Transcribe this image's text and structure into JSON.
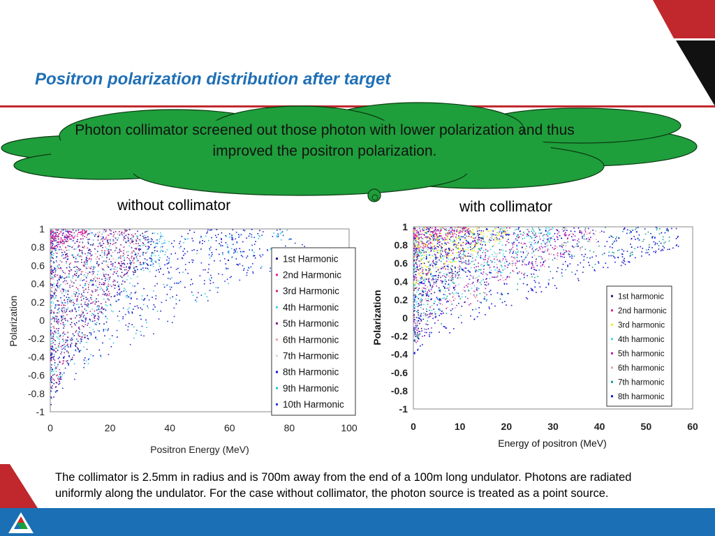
{
  "slide": {
    "title": "Positron polarization distribution after target",
    "callout_text": "Photon collimator screened out those photon with lower polarization and thus improved the positron polarization.",
    "caption_left": "without collimator",
    "caption_right": "with collimator",
    "footnote": "The collimator is 2.5mm in radius and is 700m away from the end of a 100m long undulator. Photons are radiated uniformly along the undulator. For the case without collimator, the photon source is treated as a point source."
  },
  "colors": {
    "title": "#1f6fb5",
    "accent_red": "#c0282e",
    "band_blue": "#1a6fb5",
    "callout_fill": "#1f9e3c"
  },
  "chart_data": [
    {
      "type": "scatter",
      "title": "",
      "xlabel": "Positron Energy (MeV)",
      "ylabel": "Polarization",
      "xlim": [
        0,
        100
      ],
      "ylim": [
        -1,
        1
      ],
      "xticks": [
        "0",
        "20",
        "40",
        "60",
        "80",
        "100"
      ],
      "yticks": [
        "1",
        "0.8",
        "0.6",
        "0.4",
        "0.2",
        "0",
        "-0.2",
        "-0.4",
        "-0.6",
        "-0.8",
        "-1"
      ],
      "grid": false,
      "legend_position": "right",
      "series": [
        {
          "name": "1st Harmonic",
          "color": "#1a1a8c",
          "pmin": -0.95,
          "emax": 35
        },
        {
          "name": "2nd Harmonic",
          "color": "#e0209a",
          "pmin": 0.75,
          "emax": 12
        },
        {
          "name": "3rd Harmonic",
          "color": "#cc2a7a",
          "pmin": -0.9,
          "emax": 30
        },
        {
          "name": "4th Harmonic",
          "color": "#40d0e0",
          "pmin": -0.9,
          "emax": 40
        },
        {
          "name": "5th Harmonic",
          "color": "#8a168a",
          "pmin": -0.9,
          "emax": 32
        },
        {
          "name": "6th Harmonic",
          "color": "#f0a0a0",
          "pmin": -0.5,
          "emax": 28
        },
        {
          "name": "7th Harmonic",
          "color": "#d8d8d8",
          "pmin": -0.5,
          "emax": 28
        },
        {
          "name": "8th Harmonic",
          "color": "#1010c8",
          "pmin": -0.9,
          "emax": 70
        },
        {
          "name": "9th Harmonic",
          "color": "#20c8e0",
          "pmin": -0.9,
          "emax": 80
        },
        {
          "name": "10th Harmonic",
          "color": "#2030d8",
          "pmin": -0.95,
          "emax": 85
        }
      ]
    },
    {
      "type": "scatter",
      "title": "",
      "xlabel": "Energy of positron (MeV)",
      "ylabel": "Polarization",
      "xlim": [
        0,
        60
      ],
      "ylim": [
        -1,
        1
      ],
      "xticks": [
        "0",
        "10",
        "20",
        "30",
        "40",
        "50",
        "60"
      ],
      "yticks": [
        "1",
        "0.8",
        "0.6",
        "0.4",
        "0.2",
        "0",
        "-0.2",
        "-0.4",
        "-0.6",
        "-0.8",
        "-1"
      ],
      "grid": false,
      "legend_position": "right",
      "series": [
        {
          "name": "1st harmonic",
          "color": "#1a1a8c",
          "pmin": -0.35,
          "emax": 15
        },
        {
          "name": "2nd harmonic",
          "color": "#e0209a",
          "pmin": 0.7,
          "emax": 12
        },
        {
          "name": "3rd harmonic",
          "color": "#f0f020",
          "pmin": 0.3,
          "emax": 20
        },
        {
          "name": "4th harmonic",
          "color": "#40e0f0",
          "pmin": -0.2,
          "emax": 30
        },
        {
          "name": "5th harmonic",
          "color": "#b01ab0",
          "pmin": -0.3,
          "emax": 38
        },
        {
          "name": "6th harmonic",
          "color": "#f0a0a0",
          "pmin": -0.2,
          "emax": 40
        },
        {
          "name": "7th harmonic",
          "color": "#10a090",
          "pmin": -0.25,
          "emax": 55
        },
        {
          "name": "8th harmonic",
          "color": "#1010d8",
          "pmin": -0.4,
          "emax": 57
        }
      ]
    }
  ]
}
